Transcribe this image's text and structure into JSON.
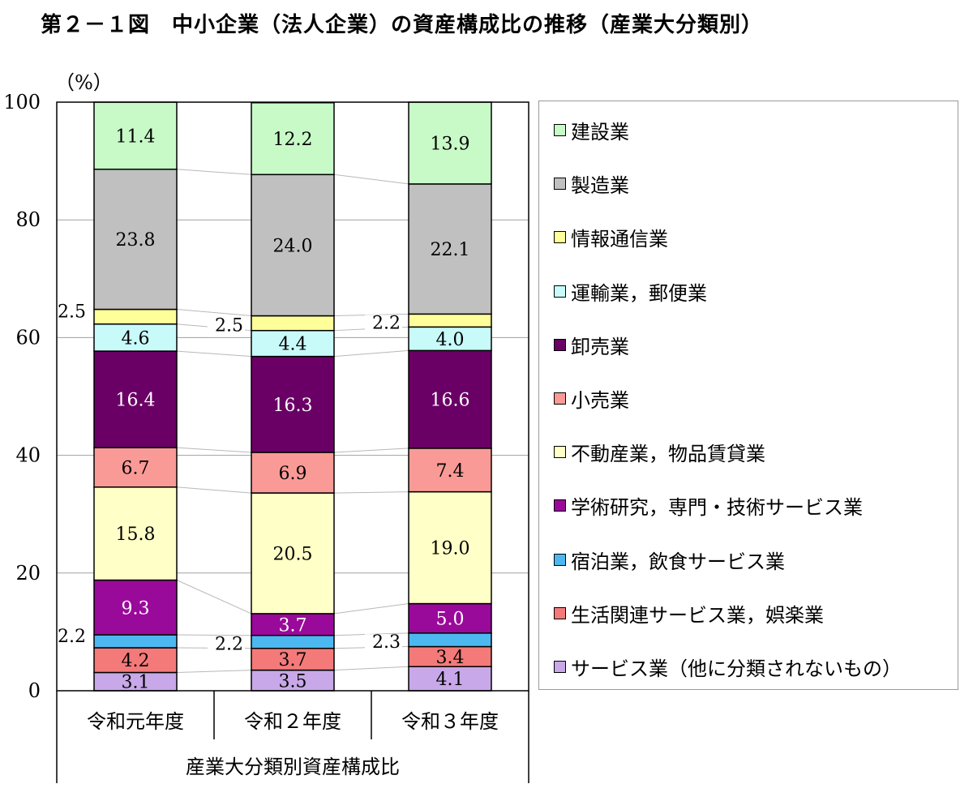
{
  "title": "第２－１図　中小企業（法人企業）の資産構成比の推移（産業大分類別）",
  "chart_data": {
    "type": "bar",
    "stacked": true,
    "ylabel": "（%）",
    "xlabel": "産業大分類別資産構成比",
    "ylim": [
      0,
      100
    ],
    "yticks": [
      0,
      20,
      40,
      60,
      80,
      100
    ],
    "grid": true,
    "legend_position": "right",
    "categories": [
      "令和元年度",
      "令和２年度",
      "令和３年度"
    ],
    "series": [
      {
        "name": "サービス業（他に分類されないもの）",
        "color": "#c8a8e8",
        "values": [
          3.1,
          3.5,
          4.1
        ]
      },
      {
        "name": "生活関連サービス業，娯楽業",
        "color": "#f47a7a",
        "values": [
          4.2,
          3.7,
          3.4
        ]
      },
      {
        "name": "宿泊業，飲食サービス業",
        "color": "#4db8f0",
        "values": [
          2.2,
          2.2,
          2.3
        ]
      },
      {
        "name": "学術研究，専門・技術サービス業",
        "color": "#9a0a9a",
        "values": [
          9.3,
          3.7,
          5.0
        ]
      },
      {
        "name": "不動産業，物品賃貸業",
        "color": "#ffffc8",
        "values": [
          15.8,
          20.5,
          19.0
        ]
      },
      {
        "name": "小売業",
        "color": "#fa9a96",
        "values": [
          6.7,
          6.9,
          7.4
        ]
      },
      {
        "name": "卸売業",
        "color": "#6a0066",
        "values": [
          16.4,
          16.3,
          16.6
        ]
      },
      {
        "name": "運輸業，郵便業",
        "color": "#c8fafa",
        "values": [
          4.6,
          4.4,
          4.0
        ]
      },
      {
        "name": "情報通信業",
        "color": "#ffff9a",
        "values": [
          2.5,
          2.5,
          2.2
        ]
      },
      {
        "name": "製造業",
        "color": "#c0c0c0",
        "values": [
          23.8,
          24.0,
          22.1
        ]
      },
      {
        "name": "建設業",
        "color": "#c8fac8",
        "values": [
          11.4,
          12.2,
          13.9
        ]
      }
    ]
  }
}
